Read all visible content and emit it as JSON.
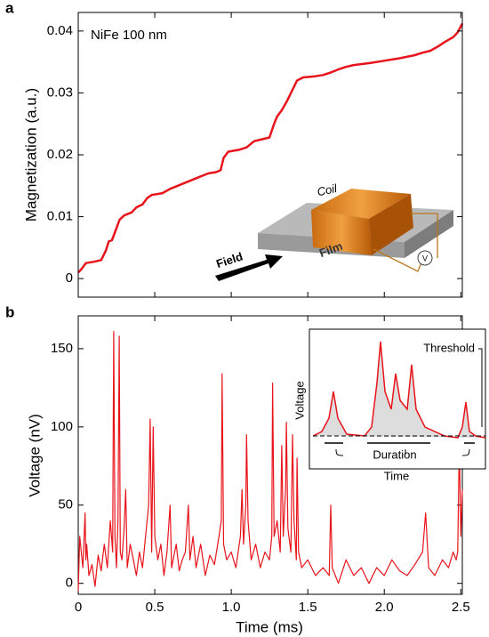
{
  "chart_data": [
    {
      "type": "line",
      "panel_label": "a",
      "y_label": "Magnetization (a.u.)",
      "annotation": "NiFe 100 nm",
      "illustration_labels": {
        "coil": "Coil",
        "film": "Film",
        "field": "Field",
        "meter": "V"
      },
      "xlim": [
        0,
        2.51
      ],
      "ylim": [
        -0.003,
        0.043
      ],
      "yticks": [
        0,
        0.01,
        0.02,
        0.03,
        0.04
      ],
      "x": [
        0,
        0.02,
        0.05,
        0.1,
        0.15,
        0.18,
        0.2,
        0.22,
        0.24,
        0.27,
        0.3,
        0.35,
        0.38,
        0.42,
        0.45,
        0.48,
        0.55,
        0.6,
        0.65,
        0.7,
        0.75,
        0.8,
        0.85,
        0.9,
        0.93,
        0.95,
        0.98,
        1.05,
        1.1,
        1.15,
        1.2,
        1.25,
        1.28,
        1.3,
        1.33,
        1.36,
        1.4,
        1.43,
        1.47,
        1.55,
        1.6,
        1.65,
        1.7,
        1.75,
        1.8,
        1.9,
        2.0,
        2.05,
        2.1,
        2.2,
        2.25,
        2.3,
        2.35,
        2.4,
        2.45,
        2.48,
        2.51
      ],
      "series": [
        {
          "color": "#e8141b",
          "values": [
            0.001,
            0.0015,
            0.0025,
            0.0027,
            0.003,
            0.0045,
            0.006,
            0.0062,
            0.0075,
            0.0095,
            0.0102,
            0.0107,
            0.0115,
            0.012,
            0.013,
            0.0135,
            0.0138,
            0.0145,
            0.015,
            0.0155,
            0.016,
            0.0165,
            0.017,
            0.0172,
            0.0175,
            0.0195,
            0.0205,
            0.0208,
            0.0212,
            0.0222,
            0.0225,
            0.0228,
            0.025,
            0.0262,
            0.0272,
            0.0285,
            0.0305,
            0.032,
            0.0325,
            0.0327,
            0.0329,
            0.0333,
            0.0338,
            0.0342,
            0.0345,
            0.0348,
            0.0352,
            0.0354,
            0.0356,
            0.0361,
            0.0365,
            0.0368,
            0.0375,
            0.0383,
            0.039,
            0.0398,
            0.0412
          ]
        }
      ]
    },
    {
      "type": "line",
      "panel_label": "b",
      "x_label": "Time (ms)",
      "y_label": "Voltage (nV)",
      "inset_labels": {
        "x_label": "Time",
        "y_label": "Voltage",
        "threshold": "Threshold",
        "duration": "Duration"
      },
      "xlim": [
        0,
        2.51
      ],
      "ylim": [
        -7,
        171
      ],
      "xticks": [
        0,
        0.5,
        {
          "value": 1,
          "label": "1.0"
        },
        1.5,
        {
          "value": 2,
          "label": "2.0"
        },
        2.5
      ],
      "yticks": [
        0,
        50,
        100,
        150
      ],
      "x": [
        0,
        0.01,
        0.02,
        0.03,
        0.045,
        0.05,
        0.055,
        0.07,
        0.09,
        0.11,
        0.13,
        0.15,
        0.17,
        0.19,
        0.21,
        0.225,
        0.232,
        0.24,
        0.25,
        0.26,
        0.268,
        0.275,
        0.285,
        0.3,
        0.31,
        0.32,
        0.34,
        0.36,
        0.38,
        0.4,
        0.42,
        0.44,
        0.46,
        0.47,
        0.48,
        0.49,
        0.5,
        0.52,
        0.54,
        0.56,
        0.58,
        0.6,
        0.61,
        0.62,
        0.64,
        0.66,
        0.68,
        0.7,
        0.72,
        0.73,
        0.75,
        0.77,
        0.8,
        0.83,
        0.86,
        0.89,
        0.92,
        0.935,
        0.94,
        0.95,
        0.97,
        1.0,
        1.03,
        1.06,
        1.07,
        1.08,
        1.095,
        1.1,
        1.11,
        1.13,
        1.16,
        1.19,
        1.22,
        1.25,
        1.265,
        1.27,
        1.28,
        1.3,
        1.32,
        1.33,
        1.34,
        1.355,
        1.36,
        1.37,
        1.39,
        1.4,
        1.41,
        1.425,
        1.43,
        1.44,
        1.46,
        1.5,
        1.55,
        1.6,
        1.64,
        1.65,
        1.66,
        1.7,
        1.75,
        1.8,
        1.85,
        1.9,
        1.95,
        2.0,
        2.05,
        2.1,
        2.15,
        2.2,
        2.25,
        2.27,
        2.29,
        2.33,
        2.38,
        2.42,
        2.45,
        2.47,
        2.48,
        2.49,
        2.5,
        2.51
      ],
      "series": [
        {
          "color": "#e8141b",
          "values": [
            -5,
            30,
            20,
            10,
            45,
            15,
            25,
            5,
            12,
            -2,
            18,
            8,
            25,
            10,
            40,
            20,
            161,
            30,
            10,
            40,
            158,
            20,
            15,
            35,
            60,
            10,
            25,
            15,
            5,
            20,
            10,
            30,
            50,
            105,
            20,
            100,
            30,
            15,
            25,
            5,
            20,
            50,
            10,
            15,
            25,
            8,
            15,
            20,
            50,
            15,
            30,
            10,
            25,
            5,
            18,
            12,
            30,
            40,
            134,
            25,
            15,
            20,
            10,
            30,
            60,
            25,
            50,
            95,
            40,
            15,
            25,
            10,
            20,
            15,
            30,
            128,
            30,
            40,
            20,
            88,
            30,
            60,
            103,
            35,
            20,
            95,
            40,
            15,
            80,
            20,
            10,
            15,
            5,
            10,
            5,
            50,
            10,
            0,
            15,
            5,
            10,
            0,
            10,
            5,
            15,
            8,
            5,
            12,
            20,
            45,
            10,
            5,
            15,
            10,
            20,
            15,
            20,
            90,
            30,
            60
          ]
        }
      ]
    }
  ]
}
